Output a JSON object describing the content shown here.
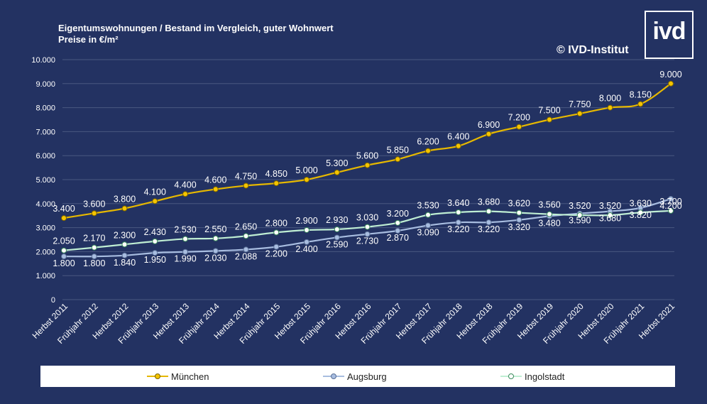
{
  "title_line1": "Eigentumswohnungen / Bestand im  Vergleich, guter Wohnwert",
  "title_line2": "Preise in €/m²",
  "copyright": "© IVD-Institut",
  "logo_text": "ivd",
  "colors": {
    "background": "#233262",
    "grid": "#4a5880",
    "muenchen": "#f5c400",
    "augsburg": "#a8bde0",
    "ingolstadt": "#c9f2dc"
  },
  "chart_data": {
    "type": "line",
    "title": "Eigentumswohnungen / Bestand im  Vergleich, guter Wohnwert",
    "subtitle": "Preise in €/m²",
    "categories": [
      "Herbst 2011",
      "Frühjahr 2012",
      "Herbst 2012",
      "Frühjahr 2013",
      "Herbst 2013",
      "Frühjahr 2014",
      "Herbst 2014",
      "Frühjahr 2015",
      "Herbst 2015",
      "Frühjahr 2016",
      "Herbst 2016",
      "Frühjahr 2017",
      "Herbst 2017",
      "Frühjahr 2018",
      "Herbst 2018",
      "Frühjahr 2019",
      "Herbst 2019",
      "Frühjahr 2020",
      "Herbst 2020",
      "Frühjahr 2021",
      "Herbst 2021"
    ],
    "series": [
      {
        "name": "München",
        "color": "#f5c400",
        "values": [
          3400,
          3600,
          3800,
          4100,
          4400,
          4600,
          4750,
          4850,
          5000,
          5300,
          5600,
          5850,
          6200,
          6400,
          6900,
          7200,
          7500,
          7750,
          8000,
          8150,
          9000
        ],
        "labels": [
          "3.400",
          "3.600",
          "3.800",
          "4.100",
          "4.400",
          "4.600",
          "4.750",
          "4.850",
          "5.000",
          "5.300",
          "5.600",
          "5.850",
          "6.200",
          "6.400",
          "6.900",
          "7.200",
          "7.500",
          "7.750",
          "8.000",
          "8.150",
          "9.000"
        ]
      },
      {
        "name": "Augsburg",
        "color": "#a8bde0",
        "values": [
          1800,
          1800,
          1840,
          1950,
          1990,
          2030,
          2088,
          2200,
          2400,
          2590,
          2730,
          2870,
          3090,
          3220,
          3220,
          3320,
          3480,
          3590,
          3680,
          3820,
          4200
        ],
        "labels": [
          "1.800",
          "1.800",
          "1.840",
          "1.950",
          "1.990",
          "2.030",
          "2.088",
          "2.200",
          "2.400",
          "2.590",
          "2.730",
          "2.870",
          "3.090",
          "3.220",
          "3.220",
          "3.320",
          "3.480",
          "3.590",
          "3.680",
          "3.820",
          "4.200"
        ]
      },
      {
        "name": "Ingolstadt",
        "color": "#c9f2dc",
        "values": [
          2050,
          2170,
          2300,
          2430,
          2530,
          2550,
          2650,
          2800,
          2900,
          2930,
          3030,
          3200,
          3530,
          3640,
          3680,
          3620,
          3560,
          3520,
          3520,
          3630,
          3700
        ],
        "labels": [
          "2.050",
          "2.170",
          "2.300",
          "2.430",
          "2.530",
          "2.550",
          "2.650",
          "2.800",
          "2.900",
          "2.930",
          "3.030",
          "3.200",
          "3.530",
          "3.640",
          "3.680",
          "3.620",
          "3.560",
          "3.520",
          "3.520",
          "3.630",
          "3.700"
        ]
      }
    ],
    "yticks": [
      0,
      1000,
      2000,
      3000,
      4000,
      5000,
      6000,
      7000,
      8000,
      9000,
      10000
    ],
    "ytick_labels": [
      "0",
      "1.000",
      "2.000",
      "3.000",
      "4.000",
      "5.000",
      "6.000",
      "7.000",
      "8.000",
      "9.000",
      "10.000"
    ],
    "ylim": [
      0,
      10000
    ],
    "grid": true,
    "legend_position": "bottom"
  }
}
